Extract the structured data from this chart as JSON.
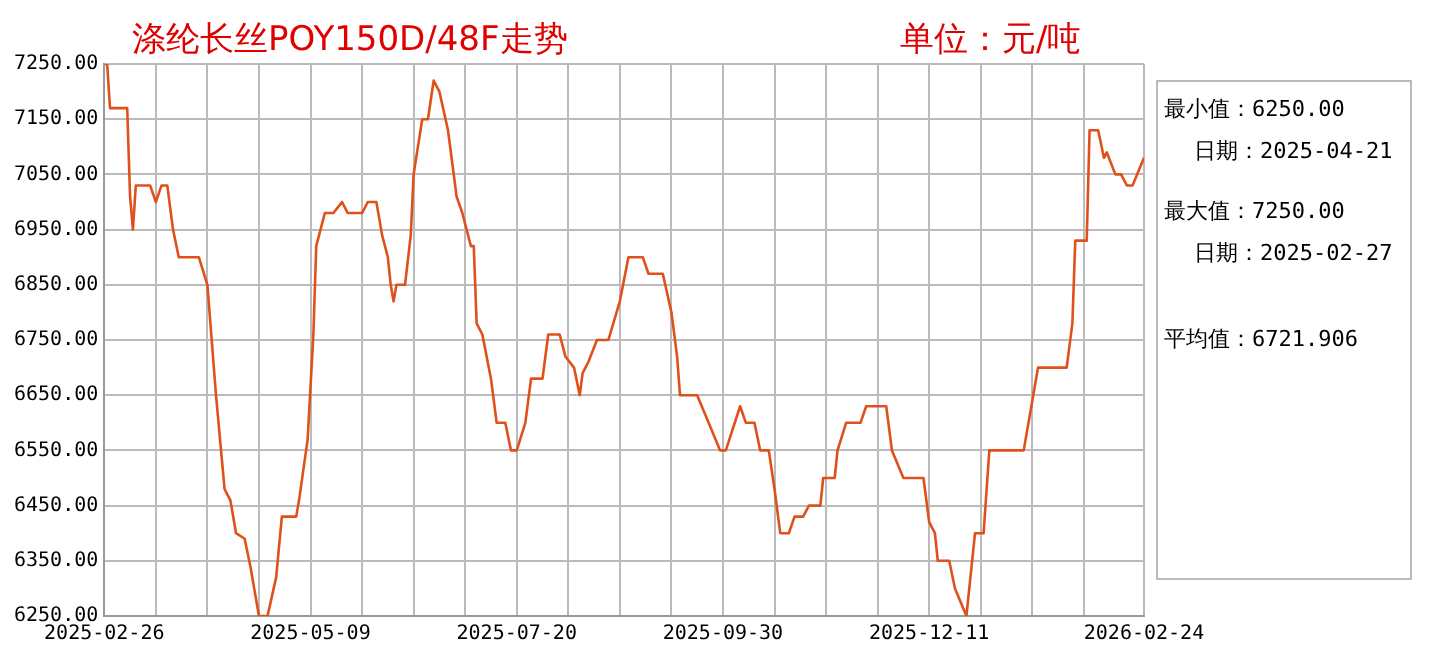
{
  "chart_data": {
    "type": "line",
    "title": "涤纶长丝POY150D/48F走势",
    "subtitle": "单位：元/吨",
    "annotations": [
      "最小值：6250.00",
      "日期：2025-04-21",
      "最大值：7250.00",
      "日期：2025-02-27",
      "平均值：6721.906"
    ],
    "x": [
      "2025-02-26",
      "2025-02-27",
      "2025-02-28",
      "2025-03-06",
      "2025-03-07",
      "2025-03-08",
      "2025-03-09",
      "2025-03-14",
      "2025-03-16",
      "2025-03-18",
      "2025-03-20",
      "2025-03-22",
      "2025-03-24",
      "2025-03-31",
      "2025-04-03",
      "2025-04-06",
      "2025-04-09",
      "2025-04-11",
      "2025-04-13",
      "2025-04-16",
      "2025-04-18",
      "2025-04-21",
      "2025-04-24",
      "2025-04-27",
      "2025-04-29",
      "2025-05-04",
      "2025-05-05",
      "2025-05-08",
      "2025-05-10",
      "2025-05-11",
      "2025-05-14",
      "2025-05-17",
      "2025-05-20",
      "2025-05-22",
      "2025-05-27",
      "2025-05-29",
      "2025-06-01",
      "2025-06-03",
      "2025-06-05",
      "2025-06-06",
      "2025-06-07",
      "2025-06-08",
      "2025-06-11",
      "2025-06-13",
      "2025-06-14",
      "2025-06-17",
      "2025-06-19",
      "2025-06-21",
      "2025-06-23",
      "2025-06-26",
      "2025-06-29",
      "2025-07-01",
      "2025-07-04",
      "2025-07-05",
      "2025-07-06",
      "2025-07-08",
      "2025-07-11",
      "2025-07-13",
      "2025-07-16",
      "2025-07-18",
      "2025-07-20",
      "2025-07-23",
      "2025-07-25",
      "2025-07-29",
      "2025-07-31",
      "2025-08-04",
      "2025-08-06",
      "2025-08-09",
      "2025-08-11",
      "2025-08-12",
      "2025-08-14",
      "2025-08-17",
      "2025-08-21",
      "2025-08-25",
      "2025-08-28",
      "2025-09-02",
      "2025-09-04",
      "2025-09-09",
      "2025-09-12",
      "2025-09-14",
      "2025-09-15",
      "2025-09-21",
      "2025-09-25",
      "2025-09-29",
      "2025-10-01",
      "2025-10-06",
      "2025-10-08",
      "2025-10-11",
      "2025-10-13",
      "2025-10-16",
      "2025-10-18",
      "2025-10-20",
      "2025-10-23",
      "2025-10-25",
      "2025-10-28",
      "2025-10-30",
      "2025-11-03",
      "2025-11-04",
      "2025-11-08",
      "2025-11-09",
      "2025-11-12",
      "2025-11-17",
      "2025-11-19",
      "2025-11-26",
      "2025-11-28",
      "2025-12-02",
      "2025-12-09",
      "2025-12-11",
      "2025-12-13",
      "2025-12-14",
      "2025-12-18",
      "2025-12-20",
      "2025-12-24",
      "2025-12-27",
      "2025-12-30",
      "2026-01-01",
      "2026-01-13",
      "2026-01-16",
      "2026-01-18",
      "2026-01-28",
      "2026-01-30",
      "2026-01-31",
      "2026-02-04",
      "2026-02-05",
      "2026-02-08",
      "2026-02-10",
      "2026-02-11",
      "2026-02-14",
      "2026-02-16",
      "2026-02-18",
      "2026-02-20",
      "2026-02-24"
    ],
    "series": [
      {
        "color": "#e0501a",
        "values": [
          7250,
          7250,
          7170,
          7170,
          7010,
          6950,
          7030,
          7030,
          7000,
          7030,
          7030,
          6950,
          6900,
          6900,
          6850,
          6650,
          6480,
          6460,
          6400,
          6390,
          6340,
          6250,
          6250,
          6320,
          6430,
          6430,
          6460,
          6570,
          6760,
          6920,
          6980,
          6980,
          7000,
          6980,
          6980,
          7000,
          7000,
          6940,
          6900,
          6850,
          6820,
          6850,
          6850,
          6940,
          7050,
          7150,
          7150,
          7220,
          7200,
          7130,
          7010,
          6980,
          6920,
          6920,
          6780,
          6760,
          6680,
          6600,
          6600,
          6550,
          6550,
          6600,
          6680,
          6680,
          6760,
          6760,
          6720,
          6700,
          6650,
          6690,
          6710,
          6750,
          6750,
          6820,
          6900,
          6900,
          6870,
          6870,
          6800,
          6720,
          6650,
          6650,
          6600,
          6550,
          6550,
          6630,
          6600,
          6600,
          6550,
          6550,
          6480,
          6400,
          6400,
          6430,
          6430,
          6450,
          6450,
          6500,
          6500,
          6550,
          6600,
          6600,
          6630,
          6630,
          6550,
          6500,
          6500,
          6420,
          6400,
          6350,
          6350,
          6300,
          6250,
          6400,
          6400,
          6550,
          6550,
          6640,
          6700,
          6700,
          6780,
          6930,
          6930,
          7130,
          7130,
          7080,
          7090,
          7050,
          7050,
          7030,
          7030,
          7080
        ]
      }
    ],
    "xlim": [
      "2025-02-26",
      "2026-02-24"
    ],
    "xticks": [
      "2025-02-26",
      {
        "value": "2025-03-16",
        "label": null
      },
      {
        "value": "2025-04-03",
        "label": null
      },
      {
        "value": "2025-04-21",
        "label": null
      },
      "2025-05-09",
      {
        "value": "2025-05-27",
        "label": null
      },
      {
        "value": "2025-06-14",
        "label": null
      },
      {
        "value": "2025-07-02",
        "label": null
      },
      "2025-07-20",
      {
        "value": "2025-08-07",
        "label": null
      },
      {
        "value": "2025-08-25",
        "label": null
      },
      {
        "value": "2025-09-12",
        "label": null
      },
      "2025-09-30",
      {
        "value": "2025-10-18",
        "label": null
      },
      {
        "value": "2025-11-05",
        "label": null
      },
      {
        "value": "2025-11-23",
        "label": null
      },
      "2025-12-11",
      {
        "value": "2025-12-29",
        "label": null
      },
      {
        "value": "2026-01-16",
        "label": null
      },
      {
        "value": "2026-02-03",
        "label": null
      },
      "2026-02-24"
    ],
    "ylim": [
      6250,
      7250
    ],
    "yticks": [
      {
        "value": 6250,
        "label": "6250.00"
      },
      {
        "value": 6350,
        "label": "6350.00"
      },
      {
        "value": 6450,
        "label": "6450.00"
      },
      {
        "value": 6550,
        "label": "6550.00"
      },
      {
        "value": 6650,
        "label": "6650.00"
      },
      {
        "value": 6750,
        "label": "6750.00"
      },
      {
        "value": 6850,
        "label": "6850.00"
      },
      {
        "value": 6950,
        "label": "6950.00"
      },
      {
        "value": 7050,
        "label": "7050.00"
      },
      {
        "value": 7150,
        "label": "7150.00"
      },
      {
        "value": 7250,
        "label": "7250.00"
      }
    ],
    "grid": true,
    "legend": false,
    "marker": "none",
    "line_style": "solid"
  }
}
